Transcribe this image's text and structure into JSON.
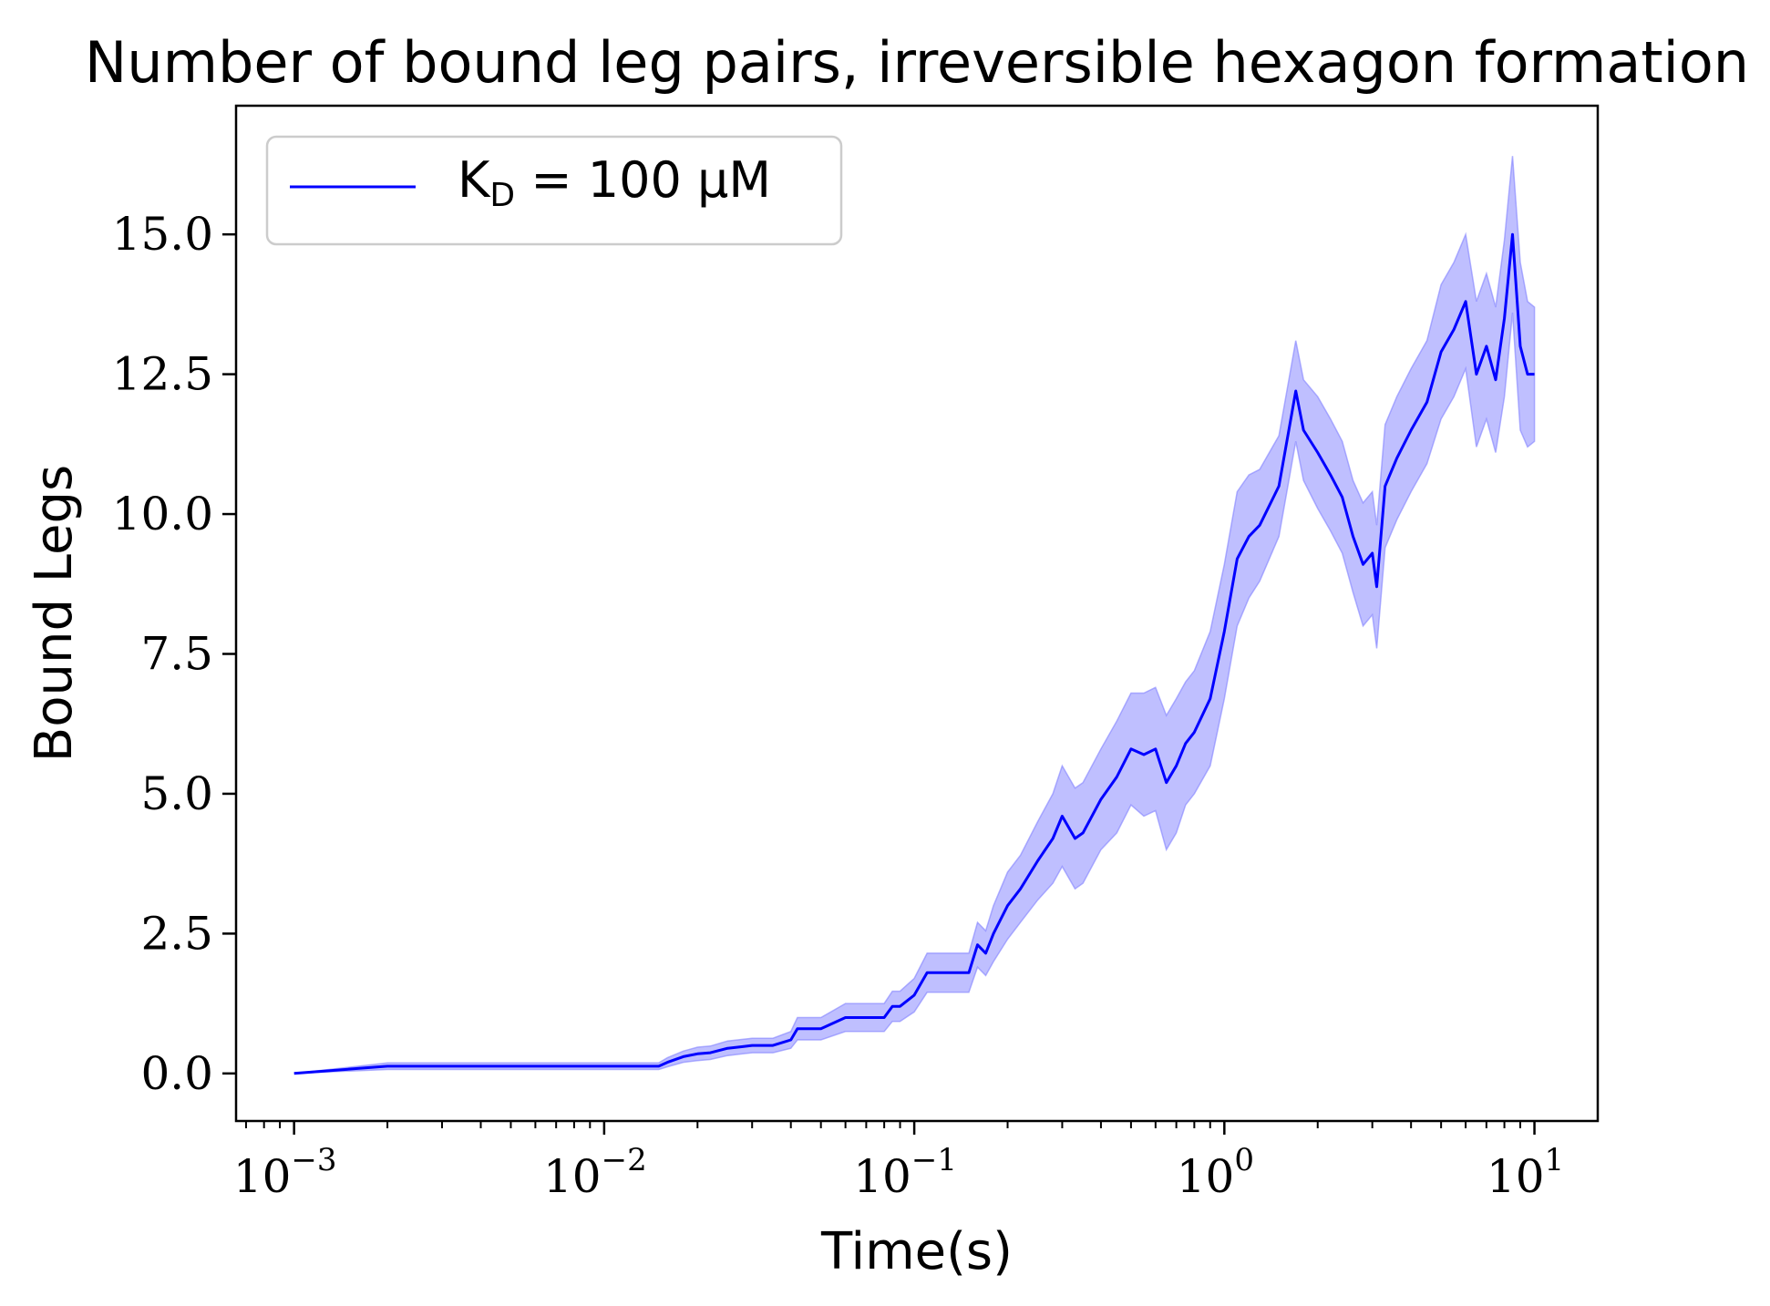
{
  "chart_data": {
    "type": "line",
    "title": "Number of bound leg pairs, irreversible hexagon formation",
    "xlabel": "Time(s)",
    "ylabel": "Bound Legs",
    "xscale": "log",
    "xlim": [
      0.00065,
      16
    ],
    "ylim": [
      -0.85,
      17.3
    ],
    "grid": false,
    "legend_position": "top-left",
    "x_ticks": [
      {
        "value": 0.001,
        "base": "10",
        "exp": "−3"
      },
      {
        "value": 0.01,
        "base": "10",
        "exp": "−2"
      },
      {
        "value": 0.1,
        "base": "10",
        "exp": "−1"
      },
      {
        "value": 1,
        "base": "10",
        "exp": "0"
      },
      {
        "value": 10,
        "base": "10",
        "exp": "1"
      }
    ],
    "y_ticks": [
      "0.0",
      "2.5",
      "5.0",
      "7.5",
      "10.0",
      "12.5",
      "15.0"
    ],
    "series": [
      {
        "name": "K_D = 100 μM",
        "legend_main": "K",
        "legend_sub": "D",
        "legend_rest": " = 100 μM",
        "color": "#0000ff",
        "band_color": "#8080ff",
        "x": [
          0.001,
          0.002,
          0.015,
          0.016,
          0.018,
          0.02,
          0.022,
          0.025,
          0.028,
          0.03,
          0.035,
          0.04,
          0.042,
          0.05,
          0.06,
          0.07,
          0.08,
          0.085,
          0.09,
          0.1,
          0.11,
          0.12,
          0.15,
          0.16,
          0.17,
          0.18,
          0.2,
          0.22,
          0.25,
          0.28,
          0.3,
          0.33,
          0.35,
          0.4,
          0.45,
          0.5,
          0.55,
          0.6,
          0.65,
          0.7,
          0.75,
          0.8,
          0.9,
          1.0,
          1.1,
          1.2,
          1.3,
          1.5,
          1.7,
          1.8,
          2.0,
          2.2,
          2.4,
          2.6,
          2.8,
          3.0,
          3.1,
          3.3,
          3.6,
          4.0,
          4.5,
          5.0,
          5.5,
          6.0,
          6.5,
          7.0,
          7.5,
          8.0,
          8.5,
          9.0,
          9.5,
          10.0
        ],
        "y": [
          0.0,
          0.13,
          0.13,
          0.2,
          0.3,
          0.35,
          0.37,
          0.45,
          0.48,
          0.5,
          0.5,
          0.6,
          0.8,
          0.8,
          1.0,
          1.0,
          1.0,
          1.2,
          1.2,
          1.4,
          1.8,
          1.8,
          1.8,
          2.3,
          2.15,
          2.5,
          3.0,
          3.3,
          3.8,
          4.2,
          4.6,
          4.2,
          4.3,
          4.9,
          5.3,
          5.8,
          5.7,
          5.8,
          5.2,
          5.5,
          5.9,
          6.1,
          6.7,
          7.9,
          9.2,
          9.6,
          9.8,
          10.5,
          12.2,
          11.5,
          11.1,
          10.7,
          10.3,
          9.6,
          9.1,
          9.3,
          8.7,
          10.5,
          11.0,
          11.5,
          12.0,
          12.9,
          13.3,
          13.8,
          12.5,
          13.0,
          12.4,
          13.5,
          15.0,
          13.0,
          12.5,
          12.5
        ],
        "lower": [
          0.0,
          0.07,
          0.07,
          0.12,
          0.2,
          0.23,
          0.25,
          0.32,
          0.35,
          0.37,
          0.37,
          0.45,
          0.6,
          0.6,
          0.75,
          0.75,
          0.75,
          0.93,
          0.93,
          1.1,
          1.45,
          1.45,
          1.45,
          1.9,
          1.75,
          2.0,
          2.4,
          2.7,
          3.1,
          3.4,
          3.7,
          3.3,
          3.4,
          4.0,
          4.3,
          4.8,
          4.6,
          4.7,
          4.0,
          4.3,
          4.8,
          5.0,
          5.5,
          6.7,
          8.0,
          8.5,
          8.8,
          9.6,
          11.3,
          10.6,
          10.1,
          9.7,
          9.3,
          8.6,
          8.0,
          8.2,
          7.6,
          9.4,
          9.9,
          10.4,
          10.9,
          11.7,
          12.1,
          12.6,
          11.2,
          11.7,
          11.1,
          12.1,
          13.6,
          11.5,
          11.2,
          11.3
        ],
        "upper": [
          0.0,
          0.19,
          0.19,
          0.28,
          0.4,
          0.47,
          0.49,
          0.58,
          0.61,
          0.63,
          0.63,
          0.75,
          1.0,
          1.0,
          1.25,
          1.25,
          1.25,
          1.47,
          1.47,
          1.7,
          2.15,
          2.15,
          2.15,
          2.7,
          2.55,
          3.0,
          3.6,
          3.9,
          4.5,
          5.0,
          5.5,
          5.1,
          5.2,
          5.8,
          6.3,
          6.8,
          6.8,
          6.9,
          6.4,
          6.7,
          7.0,
          7.2,
          7.9,
          9.1,
          10.4,
          10.7,
          10.8,
          11.4,
          13.1,
          12.4,
          12.1,
          11.7,
          11.3,
          10.6,
          10.2,
          10.4,
          9.8,
          11.6,
          12.1,
          12.6,
          13.1,
          14.1,
          14.5,
          15.0,
          13.8,
          14.3,
          13.7,
          14.9,
          16.4,
          14.5,
          13.8,
          13.7
        ]
      }
    ]
  }
}
